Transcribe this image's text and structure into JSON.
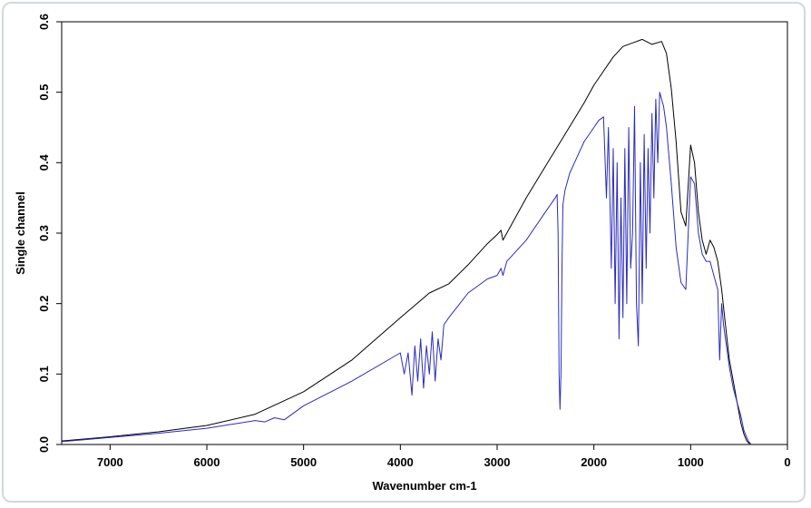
{
  "chart_data": {
    "type": "line",
    "title": "",
    "xlabel": "Wavenumber cm-1",
    "ylabel": "Single channel",
    "xlim": [
      7500,
      0
    ],
    "ylim": [
      0,
      0.6
    ],
    "x_ticks": [
      7000,
      6000,
      5000,
      4000,
      3000,
      2000,
      1000,
      0
    ],
    "x_tick_labels": [
      "7000",
      "6000",
      "5000",
      "4000",
      "3000",
      "2000",
      "1000",
      "0"
    ],
    "y_ticks": [
      0.0,
      0.1,
      0.2,
      0.3,
      0.4,
      0.5,
      0.6
    ],
    "y_tick_labels": [
      "0.0",
      "0.1",
      "0.2",
      "0.3",
      "0.4",
      "0.5",
      "0.6"
    ],
    "grid": false,
    "legend": "none",
    "series": [
      {
        "color": "#000000",
        "x": [
          7500,
          7000,
          6500,
          6000,
          5500,
          5000,
          4500,
          4000,
          3700,
          3500,
          3300,
          3100,
          3000,
          2960,
          2940,
          2900,
          2700,
          2500,
          2300,
          2100,
          2000,
          1900,
          1800,
          1700,
          1600,
          1500,
          1400,
          1300,
          1250,
          1200,
          1150,
          1100,
          1050,
          1000,
          960,
          920,
          880,
          840,
          800,
          760,
          720,
          680,
          640,
          600,
          560,
          520,
          480,
          450,
          420,
          400,
          380
        ],
        "y": [
          0.005,
          0.011,
          0.018,
          0.027,
          0.043,
          0.075,
          0.12,
          0.18,
          0.215,
          0.228,
          0.255,
          0.285,
          0.298,
          0.304,
          0.29,
          0.3,
          0.35,
          0.395,
          0.44,
          0.485,
          0.51,
          0.53,
          0.55,
          0.565,
          0.57,
          0.575,
          0.568,
          0.572,
          0.555,
          0.505,
          0.43,
          0.33,
          0.31,
          0.425,
          0.4,
          0.33,
          0.29,
          0.27,
          0.29,
          0.28,
          0.26,
          0.22,
          0.17,
          0.12,
          0.09,
          0.06,
          0.03,
          0.015,
          0.005,
          0.002,
          0.001
        ]
      },
      {
        "color": "#2b2bbf",
        "x": [
          7500,
          7000,
          6500,
          6000,
          5500,
          5400,
          5300,
          5200,
          5000,
          4500,
          4000,
          3960,
          3920,
          3880,
          3850,
          3820,
          3790,
          3760,
          3730,
          3700,
          3670,
          3640,
          3610,
          3580,
          3550,
          3500,
          3300,
          3100,
          3000,
          2960,
          2940,
          2900,
          2700,
          2500,
          2400,
          2380,
          2370,
          2360,
          2350,
          2340,
          2330,
          2320,
          2300,
          2280,
          2250,
          2200,
          2100,
          2000,
          1950,
          1900,
          1870,
          1850,
          1820,
          1800,
          1780,
          1760,
          1740,
          1720,
          1700,
          1680,
          1660,
          1640,
          1620,
          1600,
          1580,
          1560,
          1540,
          1520,
          1500,
          1480,
          1460,
          1440,
          1420,
          1400,
          1380,
          1360,
          1340,
          1320,
          1300,
          1280,
          1250,
          1200,
          1150,
          1100,
          1050,
          1000,
          960,
          920,
          880,
          840,
          800,
          760,
          720,
          700,
          680,
          660,
          640,
          620,
          600,
          560,
          520,
          480,
          450,
          420,
          400,
          380
        ],
        "y": [
          0.004,
          0.01,
          0.016,
          0.023,
          0.034,
          0.032,
          0.038,
          0.035,
          0.055,
          0.09,
          0.13,
          0.1,
          0.13,
          0.07,
          0.14,
          0.09,
          0.15,
          0.08,
          0.14,
          0.1,
          0.16,
          0.09,
          0.15,
          0.12,
          0.17,
          0.18,
          0.215,
          0.235,
          0.24,
          0.25,
          0.24,
          0.26,
          0.29,
          0.33,
          0.35,
          0.355,
          0.3,
          0.1,
          0.05,
          0.1,
          0.25,
          0.34,
          0.36,
          0.37,
          0.385,
          0.4,
          0.43,
          0.45,
          0.46,
          0.465,
          0.35,
          0.45,
          0.25,
          0.42,
          0.2,
          0.4,
          0.15,
          0.35,
          0.18,
          0.42,
          0.2,
          0.45,
          0.25,
          0.3,
          0.48,
          0.2,
          0.14,
          0.4,
          0.2,
          0.44,
          0.25,
          0.42,
          0.3,
          0.47,
          0.35,
          0.49,
          0.4,
          0.5,
          0.49,
          0.48,
          0.45,
          0.37,
          0.28,
          0.23,
          0.22,
          0.38,
          0.37,
          0.3,
          0.27,
          0.26,
          0.26,
          0.24,
          0.22,
          0.12,
          0.2,
          0.17,
          0.15,
          0.13,
          0.11,
          0.08,
          0.06,
          0.04,
          0.02,
          0.01,
          0.004,
          0.001
        ]
      }
    ]
  }
}
